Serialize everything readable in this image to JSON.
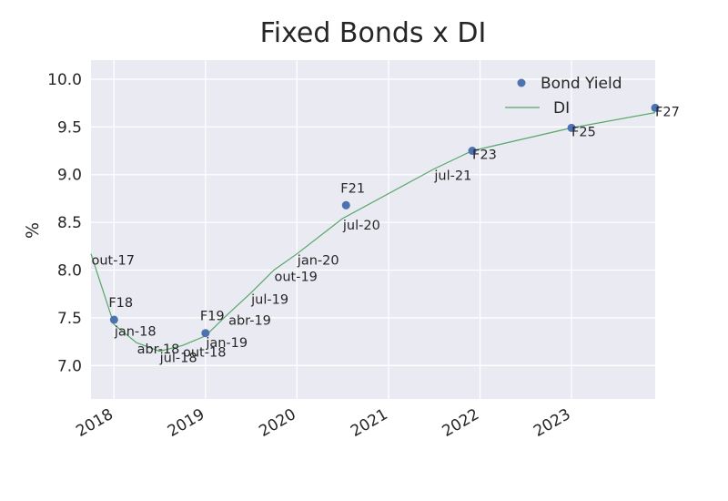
{
  "chart_data": {
    "type": "line",
    "title": "Fixed Bonds x DI",
    "xlabel": "",
    "ylabel": "%",
    "ylim": [
      6.65,
      10.2
    ],
    "xlim": [
      "2017-10-01",
      "2023-12-01"
    ],
    "grid": true,
    "legend_position": "top-right",
    "x_ticks": [
      "2018",
      "2019",
      "2020",
      "2021",
      "2022",
      "2023"
    ],
    "y_ticks": [
      "7.0",
      "7.5",
      "8.0",
      "8.5",
      "9.0",
      "9.5",
      "10.0"
    ],
    "colors": {
      "bond_yield": "#4C72B0",
      "di": "#55A868",
      "plot_bg": "#EAEAF2",
      "grid": "#ffffff"
    },
    "series": [
      {
        "name": "Bond Yield",
        "style": "markers",
        "points": [
          {
            "x": "2018-01-01",
            "y": 7.48,
            "label": "F18"
          },
          {
            "x": "2019-01-01",
            "y": 7.34,
            "label": "F19"
          },
          {
            "x": "2020-07-15",
            "y": 8.68,
            "label": "F21"
          },
          {
            "x": "2021-12-01",
            "y": 9.25,
            "label": "F23"
          },
          {
            "x": "2023-01-01",
            "y": 9.49,
            "label": "F25"
          },
          {
            "x": "2023-12-01",
            "y": 9.7,
            "label": "F27"
          }
        ]
      },
      {
        "name": "DI",
        "style": "line",
        "points": [
          {
            "x": "2017-10-01",
            "y": 8.17,
            "label": "out-17"
          },
          {
            "x": "2018-01-01",
            "y": 7.43,
            "label": "jan-18"
          },
          {
            "x": "2018-04-01",
            "y": 7.24,
            "label": "abr-18"
          },
          {
            "x": "2018-07-01",
            "y": 7.15,
            "label": "jul-18"
          },
          {
            "x": "2018-10-01",
            "y": 7.21,
            "label": "out-18"
          },
          {
            "x": "2019-01-01",
            "y": 7.31,
            "label": "jan-19"
          },
          {
            "x": "2019-04-01",
            "y": 7.54,
            "label": "abr-19"
          },
          {
            "x": "2019-07-01",
            "y": 7.76,
            "label": "jul-19"
          },
          {
            "x": "2019-10-01",
            "y": 8.0,
            "label": "out-19"
          },
          {
            "x": "2020-01-01",
            "y": 8.17,
            "label": "jan-20"
          },
          {
            "x": "2020-07-01",
            "y": 8.54,
            "label": "jul-20"
          },
          {
            "x": "2021-07-01",
            "y": 9.06,
            "label": "jul-21"
          },
          {
            "x": "2021-12-01",
            "y": 9.25,
            "label": null
          },
          {
            "x": "2023-01-01",
            "y": 9.49,
            "label": null
          },
          {
            "x": "2023-12-01",
            "y": 9.65,
            "label": null
          }
        ]
      }
    ]
  }
}
